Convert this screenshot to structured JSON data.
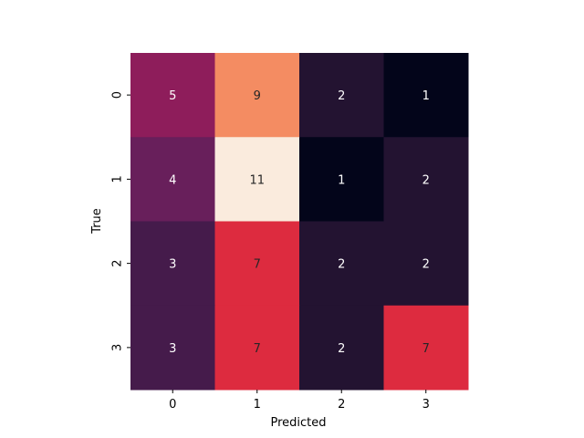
{
  "chart_data": {
    "type": "heatmap",
    "title": "",
    "xlabel": "Predicted",
    "ylabel": "True",
    "x_categories": [
      "0",
      "1",
      "2",
      "3"
    ],
    "y_categories": [
      "0",
      "1",
      "2",
      "3"
    ],
    "values": [
      [
        5,
        9,
        2,
        1
      ],
      [
        4,
        11,
        1,
        2
      ],
      [
        3,
        7,
        2,
        2
      ],
      [
        3,
        7,
        2,
        7
      ]
    ],
    "value_range": [
      1,
      11
    ],
    "colormap": "rocket",
    "colorbar": false,
    "annotated": true,
    "grid": false
  }
}
